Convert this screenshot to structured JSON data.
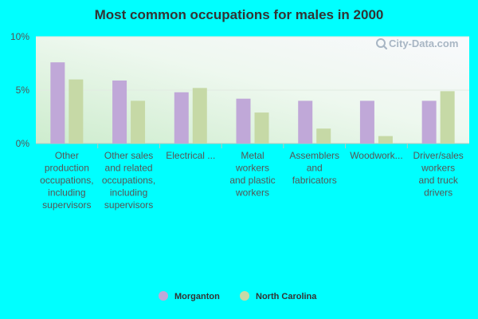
{
  "chart_data": {
    "type": "bar",
    "title": "Most common occupations for males in 2000",
    "xlabel": "",
    "ylabel": "",
    "ylim": [
      0,
      10
    ],
    "yticks": [
      {
        "value": 0,
        "label": "0%"
      },
      {
        "value": 5,
        "label": "5%"
      },
      {
        "value": 10,
        "label": "10%"
      }
    ],
    "grid": true,
    "legend_position": "bottom",
    "categories": [
      "Other production occupations, including supervisors",
      "Other sales and related occupations, including supervisors",
      "Electrical ...",
      "Metal workers and plastic workers",
      "Assemblers and fabricators",
      "Woodwork...",
      "Driver/sales workers and truck drivers"
    ],
    "category_lines": [
      [
        "Other",
        "production",
        "occupations,",
        "including",
        "supervisors"
      ],
      [
        "Other sales",
        "and related",
        "occupations,",
        "including",
        "supervisors"
      ],
      [
        "Electrical ..."
      ],
      [
        "Metal",
        "workers",
        "and plastic",
        "workers"
      ],
      [
        "Assemblers",
        "and",
        "fabricators"
      ],
      [
        "Woodwork..."
      ],
      [
        "Driver/sales",
        "workers",
        "and truck",
        "drivers"
      ]
    ],
    "series": [
      {
        "name": "Morganton",
        "color": "#c0a8d8",
        "values": [
          7.6,
          5.9,
          4.8,
          4.2,
          4.0,
          4.0,
          4.0
        ]
      },
      {
        "name": "North Carolina",
        "color": "#c6d9a6",
        "values": [
          6.0,
          4.0,
          5.2,
          2.9,
          1.4,
          0.7,
          4.9
        ]
      }
    ]
  },
  "watermark": {
    "text": "City-Data.com",
    "icon": "magnifier-icon"
  }
}
